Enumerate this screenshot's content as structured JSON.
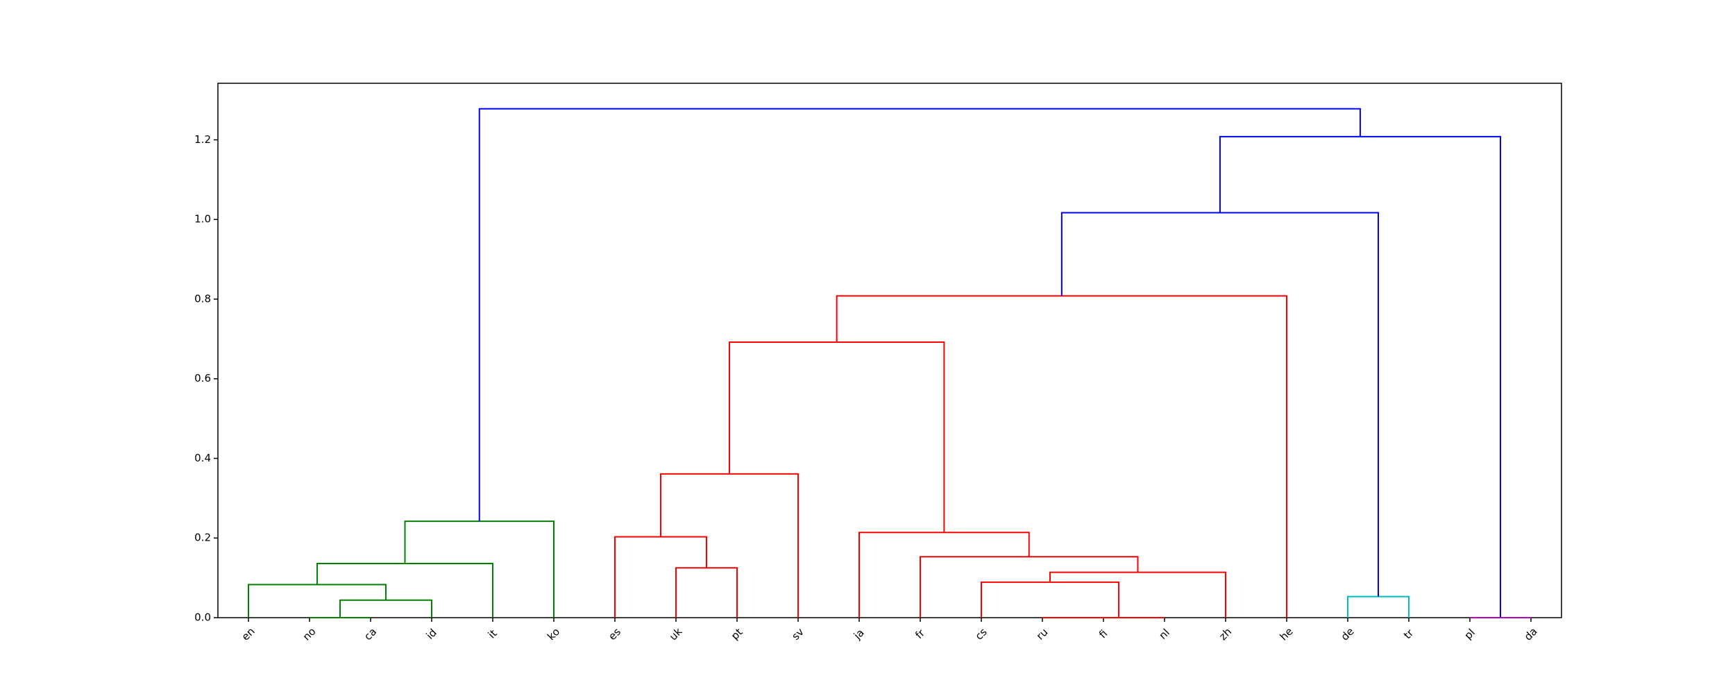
{
  "chart_data": {
    "type": "dendrogram",
    "leaves": [
      "en",
      "no",
      "ca",
      "id",
      "it",
      "ko",
      "es",
      "uk",
      "pt",
      "sv",
      "ja",
      "fr",
      "cs",
      "ru",
      "fi",
      "nl",
      "zh",
      "he",
      "de",
      "tr",
      "pl",
      "da"
    ],
    "merges": [
      {
        "children": [
          1,
          2
        ],
        "height": 0.0,
        "color": "#008000"
      },
      {
        "children": [
          22,
          3
        ],
        "height": 0.044,
        "color": "#008000"
      },
      {
        "children": [
          0,
          23
        ],
        "height": 0.083,
        "color": "#008000"
      },
      {
        "children": [
          24,
          4
        ],
        "height": 0.136,
        "color": "#008000"
      },
      {
        "children": [
          25,
          5
        ],
        "height": 0.242,
        "color": "#008000"
      },
      {
        "children": [
          7,
          8
        ],
        "height": 0.125,
        "color": "#ff0000"
      },
      {
        "children": [
          6,
          27
        ],
        "height": 0.203,
        "color": "#ff0000"
      },
      {
        "children": [
          28,
          9
        ],
        "height": 0.361,
        "color": "#ff0000"
      },
      {
        "children": [
          13,
          14
        ],
        "height": 0.0,
        "color": "#ff0000"
      },
      {
        "children": [
          30,
          15
        ],
        "height": 0.0,
        "color": "#ff0000"
      },
      {
        "children": [
          12,
          31
        ],
        "height": 0.089,
        "color": "#ff0000"
      },
      {
        "children": [
          32,
          16
        ],
        "height": 0.114,
        "color": "#ff0000"
      },
      {
        "children": [
          11,
          33
        ],
        "height": 0.153,
        "color": "#ff0000"
      },
      {
        "children": [
          10,
          34
        ],
        "height": 0.214,
        "color": "#ff0000"
      },
      {
        "children": [
          29,
          35
        ],
        "height": 0.692,
        "color": "#ff0000"
      },
      {
        "children": [
          36,
          17
        ],
        "height": 0.808,
        "color": "#ff0000"
      },
      {
        "children": [
          18,
          19
        ],
        "height": 0.053,
        "color": "#00bfbf"
      },
      {
        "children": [
          37,
          38
        ],
        "height": 1.017,
        "color": "#0000ff"
      },
      {
        "children": [
          20,
          21
        ],
        "height": 0.0,
        "color": "#bf00bf"
      },
      {
        "children": [
          39,
          40
        ],
        "height": 1.208,
        "color": "#0000ff"
      },
      {
        "children": [
          26,
          41
        ],
        "height": 1.278,
        "color": "#0000ff"
      }
    ],
    "ylim": [
      0,
      1.342
    ],
    "yticks": [
      {
        "value": 0,
        "label": "0.0"
      },
      {
        "value": 0.2,
        "label": "0.2"
      },
      {
        "value": 0.4,
        "label": "0.4"
      },
      {
        "value": 0.6,
        "label": "0.6"
      },
      {
        "value": 0.8,
        "label": "0.8"
      },
      {
        "value": 1.0,
        "label": "1.0"
      },
      {
        "value": 1.2,
        "label": "1.2"
      }
    ]
  }
}
